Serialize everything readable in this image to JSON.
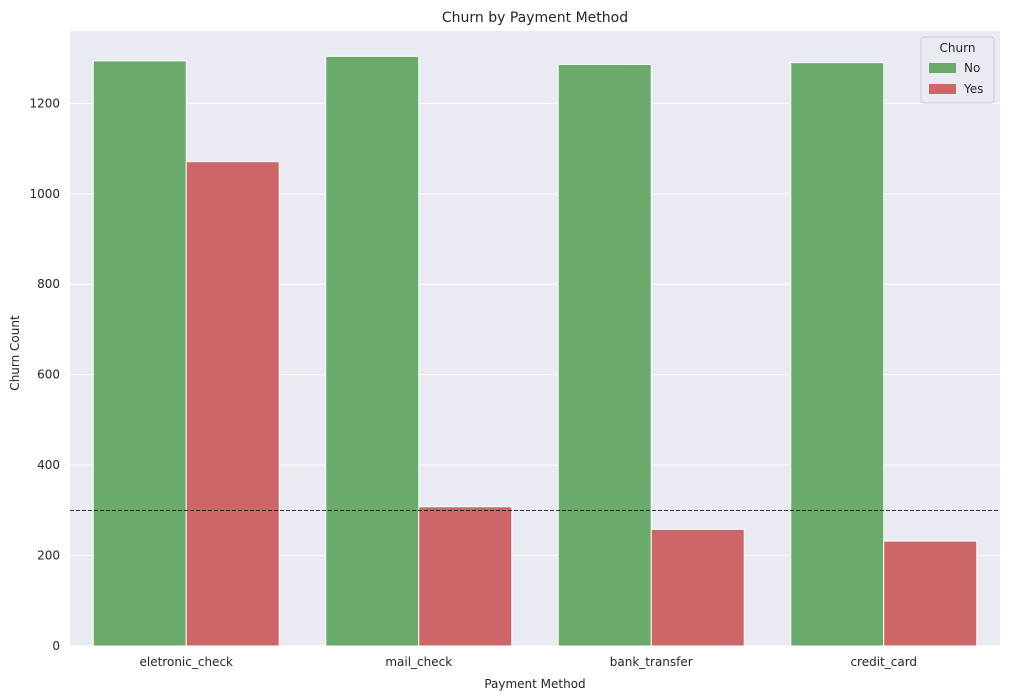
{
  "chart_data": {
    "type": "bar",
    "title": "Churn by Payment Method",
    "xlabel": "Payment Method",
    "ylabel": "Churn Count",
    "categories": [
      "eletronic_check",
      "mail_check",
      "bank_transfer",
      "credit_card"
    ],
    "series": [
      {
        "name": "No",
        "values": [
          1294,
          1304,
          1286,
          1290
        ],
        "color": "#6aaa6a"
      },
      {
        "name": "Yes",
        "values": [
          1071,
          308,
          258,
          232
        ],
        "color": "#cd6668"
      }
    ],
    "ylim": [
      0,
      1360
    ],
    "yticks": [
      0,
      200,
      400,
      600,
      800,
      1000,
      1200
    ],
    "reference_line": {
      "y": 300,
      "style": "dashed",
      "color": "#000000"
    },
    "grid": true,
    "legend": {
      "title": "Churn",
      "placement": "top-right"
    },
    "colors": {
      "plot_background": "#eaeaf2",
      "grid": "#ffffff"
    }
  }
}
